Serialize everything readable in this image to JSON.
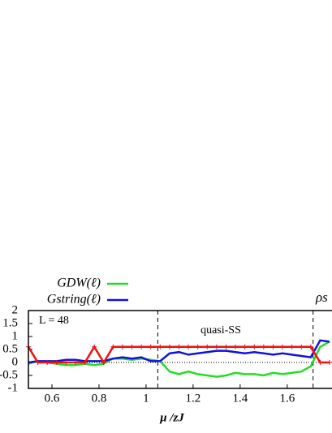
{
  "chart_data": {
    "type": "line",
    "x_label": "μ /zJ",
    "annotations": [
      "L = 48",
      "quasi-SS",
      "ρs"
    ],
    "x": [
      0.5,
      0.54,
      0.58,
      0.62,
      0.66,
      0.7,
      0.74,
      0.78,
      0.82,
      0.86,
      0.9,
      0.94,
      0.98,
      1.02,
      1.06,
      1.1,
      1.14,
      1.18,
      1.22,
      1.26,
      1.3,
      1.34,
      1.38,
      1.42,
      1.46,
      1.5,
      1.54,
      1.58,
      1.62,
      1.66,
      1.7,
      1.74,
      1.78
    ],
    "series": [
      {
        "name": "GDW(ℓ)",
        "color": "#22dd22",
        "in_legend": true,
        "values": [
          -0.05,
          0.05,
          0,
          -0.05,
          -0.1,
          -0.1,
          -0.05,
          -0.1,
          -0.05,
          0.15,
          0.15,
          0.1,
          0.15,
          0.1,
          0.05,
          -0.35,
          -0.45,
          -0.35,
          -0.45,
          -0.5,
          -0.55,
          -0.5,
          -0.4,
          -0.45,
          -0.45,
          -0.5,
          -0.4,
          -0.45,
          -0.4,
          -0.35,
          -0.15,
          0.6,
          0.8
        ]
      },
      {
        "name": "Gstring(ℓ)",
        "color": "#1111dd",
        "in_legend": true,
        "values": [
          0,
          0.05,
          0.05,
          0.05,
          0.1,
          0.1,
          0.05,
          0.05,
          0.05,
          0.15,
          0.2,
          0.15,
          0.2,
          0.05,
          0.05,
          0.35,
          0.4,
          0.3,
          0.35,
          0.4,
          0.45,
          0.45,
          0.4,
          0.35,
          0.4,
          0.35,
          0.3,
          0.35,
          0.3,
          0.25,
          0.2,
          0.85,
          0.8
        ]
      },
      {
        "color": "#ee1111",
        "markers": true,
        "values": [
          0.6,
          0,
          0,
          0,
          0,
          0,
          0,
          0.6,
          0,
          0.6,
          0.6,
          0.6,
          0.6,
          0.6,
          0.6,
          0.6,
          0.6,
          0.6,
          0.6,
          0.6,
          0.6,
          0.6,
          0.6,
          0.6,
          0.6,
          0.6,
          0.6,
          0.6,
          0.6,
          0.6,
          0.6,
          0,
          0
        ]
      }
    ],
    "xlim": [
      0.5,
      1.78
    ],
    "xticks": [
      0.6,
      0.8,
      1,
      1.2,
      1.4,
      1.6
    ],
    "ylim": [
      -1,
      2
    ],
    "yticks": [
      -1,
      -0.5,
      0,
      0.5,
      1,
      1.5,
      2
    ],
    "vlines": [
      1.05,
      1.71
    ],
    "hline": 0
  }
}
